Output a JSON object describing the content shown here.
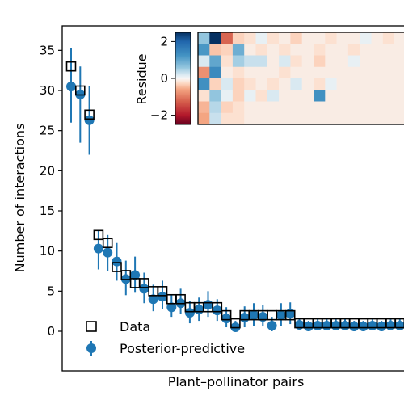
{
  "chart_data": {
    "type": "scatter",
    "xlabel": "Plant–pollinator pairs",
    "ylabel": "Number of interactions",
    "ylim": [
      -5,
      38
    ],
    "y_ticks": [
      0,
      5,
      10,
      15,
      20,
      25,
      30,
      35
    ],
    "legend": {
      "position": "bottom-left",
      "entries": [
        "Data",
        "Posterior-predictive"
      ]
    },
    "series": [
      {
        "name": "Data",
        "marker": "open-square",
        "color": "#000000",
        "values": [
          33,
          30,
          27,
          12,
          11,
          8,
          7,
          6,
          6,
          5,
          5,
          4,
          4,
          3,
          3,
          3,
          3,
          2,
          1,
          2,
          2,
          2,
          2,
          2,
          2,
          1,
          1,
          1,
          1,
          1,
          1,
          1,
          1,
          1,
          1,
          1,
          1,
          1,
          1,
          1,
          1,
          1,
          1
        ]
      },
      {
        "name": "Posterior-predictive",
        "marker": "filled-circle-errorbar",
        "color": "#1f77b4",
        "values": [
          30.5,
          29.5,
          26.3,
          10.3,
          9.8,
          8.7,
          6.5,
          7,
          5.3,
          4,
          4.3,
          3,
          3.5,
          2.3,
          2.7,
          3.3,
          2.6,
          1.6,
          0.5,
          1.7,
          2,
          1.8,
          0.7,
          2,
          2.2,
          0.8,
          0.6,
          0.7,
          0.7,
          0.7,
          0.7,
          0.6,
          0.6,
          0.7,
          0.6,
          0.7,
          0.7,
          0.7,
          0.7,
          0.6,
          0.6,
          0.6,
          0.6
        ],
        "lower": [
          26,
          23.5,
          22,
          7.7,
          7.5,
          6.3,
          4.5,
          4.8,
          3.5,
          2.5,
          2.8,
          1.8,
          2.2,
          1,
          1.3,
          1.8,
          1.3,
          0.5,
          0,
          0.5,
          0.7,
          0.6,
          0,
          0.7,
          0.9,
          0.1,
          0,
          0.1,
          0.1,
          0.1,
          0.1,
          0,
          0,
          0.1,
          0,
          0.1,
          0.1,
          0.1,
          0.1,
          0,
          0,
          0,
          0
        ],
        "upper": [
          35.3,
          33,
          30.5,
          12.5,
          12,
          11,
          8.8,
          9.3,
          7.3,
          5.8,
          6.3,
          4.5,
          5.3,
          3.8,
          4.2,
          5,
          4,
          3,
          1.3,
          3.1,
          3.5,
          3.3,
          1.8,
          3.5,
          3.6,
          1.6,
          1.3,
          1.5,
          1.5,
          1.5,
          1.5,
          1.3,
          1.3,
          1.5,
          1.3,
          1.5,
          1.5,
          1.5,
          1.5,
          1.3,
          1.3,
          1.3,
          1.3
        ]
      }
    ],
    "inset": {
      "type": "heatmap",
      "colorbar_label": "Residue",
      "colorbar_ticks": [
        2,
        0,
        -2
      ],
      "colormap": "RdBu",
      "vmin": -2.5,
      "vmax": 2.5,
      "cells": [
        [
          0.6,
          2.5,
          -1.2,
          -0.3,
          -0.2,
          0.1,
          -0.2,
          -0.1,
          -0.3,
          -0.1,
          -0.1,
          -0.2,
          -0.1,
          -0.1,
          0.1,
          -0.1,
          -0.2,
          -0.1,
          -0.1,
          -0.2,
          -0.1,
          -0.1,
          0.1,
          -0.1,
          -0.1,
          -0.1,
          0.5,
          -0.1,
          -0.1,
          -0.1,
          -0.1,
          -0.1,
          -0.1,
          -0.1,
          -0.1,
          -0.1,
          -0.1,
          -0.1,
          0.3,
          -0.1,
          -0.1,
          -0.1,
          -0.1
        ],
        [
          1.2,
          -0.4,
          -0.3,
          0.9,
          -0.1,
          -0.2,
          -0.1,
          -0.2,
          -0.1,
          -0.1,
          -0.2,
          -0.1,
          -0.1,
          -0.2,
          -0.1,
          -0.1,
          -0.1,
          -0.1,
          -0.1,
          -0.1,
          -0.1,
          -0.1,
          -0.1,
          -0.1,
          -0.1,
          -0.1,
          -0.1,
          -0.1,
          -0.1,
          -0.1,
          0.2,
          -0.1,
          -0.1,
          -0.1,
          -0.1,
          -0.1,
          -0.1,
          -0.1,
          -0.1,
          -0.1,
          -0.1,
          -0.1,
          -0.1
        ],
        [
          0.2,
          1.0,
          -0.2,
          0.5,
          0.3,
          0.3,
          -0.1,
          0.2,
          -0.2,
          -0.1,
          -0.3,
          -0.1,
          -0.1,
          0.1,
          -0.1,
          -0.1,
          -0.1,
          -0.1,
          -0.1,
          -0.1,
          -0.1,
          -0.1,
          -0.1,
          -0.1,
          -0.1,
          -0.1,
          -0.1,
          -0.1,
          -0.1,
          -0.1,
          -0.1,
          -0.1,
          -0.1,
          -0.1,
          -0.1,
          -0.1,
          -0.1,
          -0.1,
          -0.1,
          -0.1,
          -0.1,
          -0.1,
          -0.1
        ],
        [
          -0.8,
          1.4,
          -0.1,
          -0.2,
          -0.1,
          -0.1,
          -0.1,
          -0.2,
          -0.1,
          -0.1,
          -0.1,
          -0.1,
          -0.1,
          -0.1,
          -0.1,
          -0.1,
          -0.1,
          -0.1,
          -0.1,
          -0.1,
          0.3,
          -0.1,
          -0.1,
          -0.1,
          -0.1,
          -0.1,
          -0.1,
          -0.1,
          -0.1,
          -0.1,
          -0.1,
          -0.1,
          -0.1,
          -0.1,
          -0.1,
          -0.1,
          -0.1,
          -0.1,
          -0.1,
          -0.1,
          -0.1,
          -0.1,
          -0.1
        ],
        [
          1.3,
          -0.3,
          0.2,
          -0.3,
          -0.2,
          -0.1,
          -0.2,
          -0.1,
          0.2,
          -0.1,
          -0.2,
          0.1,
          -0.1,
          -0.1,
          -0.1,
          -0.1,
          -0.1,
          -0.1,
          0.2,
          -0.1,
          -0.1,
          -0.1,
          -0.1,
          -0.1,
          -0.1,
          -0.1,
          -0.1,
          -0.1,
          -0.1,
          -0.1,
          -0.1,
          -0.1,
          -0.1,
          -0.1,
          -0.1,
          -0.1,
          -0.1,
          -0.1,
          -0.1,
          -0.1,
          -0.1,
          -0.1,
          -0.1
        ],
        [
          -0.2,
          0.6,
          0.1,
          -0.3,
          0.1,
          -0.2,
          0.2,
          -0.1,
          -0.1,
          -0.1,
          1.3,
          -0.1,
          -0.1,
          -0.1,
          -0.1,
          -0.1,
          -0.1,
          -0.1,
          -0.1,
          -0.1,
          -0.1,
          -0.1,
          -0.1,
          -0.1,
          -0.1,
          -0.1,
          -0.1,
          -0.1,
          -0.1,
          -0.1,
          -0.1,
          -0.1,
          -0.1,
          -0.1,
          -0.1,
          -0.1,
          -0.1,
          -0.1,
          -0.1,
          -0.1,
          -0.1,
          -0.1,
          -0.1
        ],
        [
          -0.5,
          0.4,
          -0.3,
          -0.2,
          -0.1,
          -0.1,
          -0.1,
          -0.1,
          -0.1,
          -0.1,
          -0.1,
          -0.1,
          -0.1,
          -0.1,
          -0.1,
          -0.1,
          -0.1,
          -0.1,
          -0.1,
          -0.1,
          -0.1,
          -0.1,
          -0.1,
          -0.1,
          -0.1,
          -0.1,
          -0.1,
          -0.1,
          -0.1,
          -0.1,
          -0.1,
          -0.1,
          -0.1,
          -0.1,
          -0.1,
          -0.1,
          -0.1,
          -0.1,
          -0.1,
          -0.1,
          -0.1,
          -0.1,
          -0.1
        ],
        [
          -0.6,
          0.3,
          -0.2,
          -0.2,
          -0.1,
          -0.1,
          -0.1,
          -0.1,
          -0.1,
          -0.1,
          -0.1,
          -0.1,
          -0.1,
          -0.1,
          -0.1,
          -0.1,
          -0.1,
          -0.1,
          -0.1,
          -0.1,
          -0.1,
          -0.1,
          -0.1,
          -0.1,
          -0.1,
          -0.1,
          -0.1,
          -0.1,
          -0.1,
          -0.1,
          -0.1,
          -0.1,
          -0.1,
          -0.1,
          -0.1,
          -0.1,
          -0.1,
          -0.1,
          -0.1,
          -0.1,
          -0.1,
          -0.1,
          0.3
        ]
      ]
    }
  }
}
